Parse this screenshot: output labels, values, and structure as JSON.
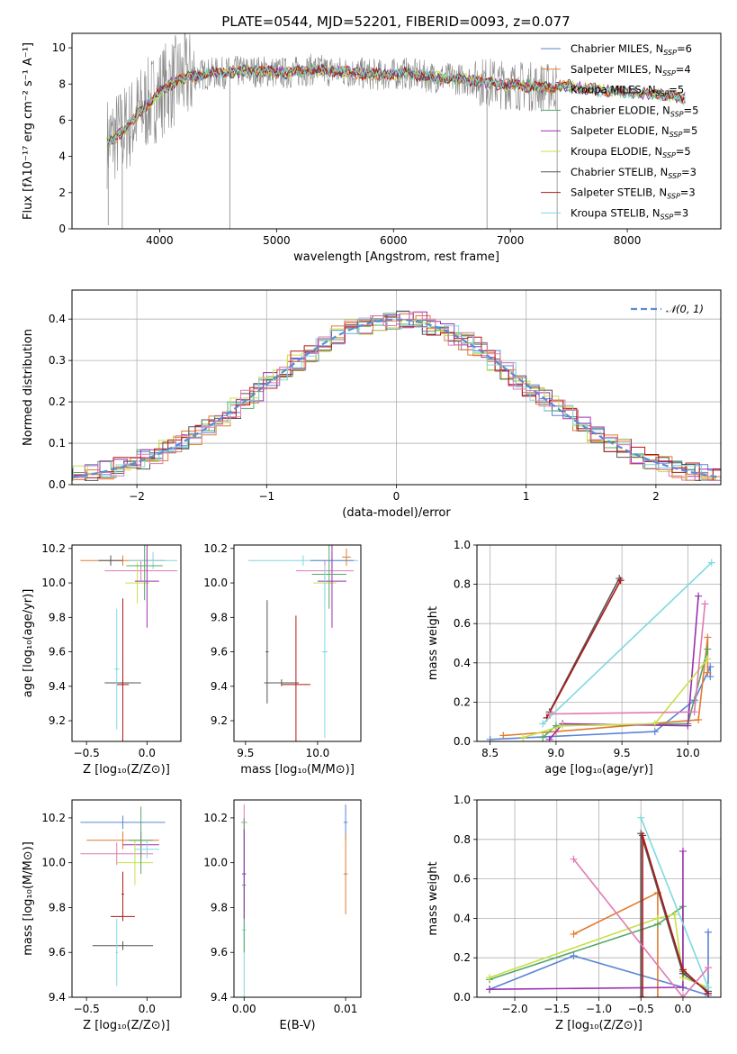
{
  "figure": {
    "title": "PLATE=0544, MJD=52201, FIBERID=0093, z=0.077"
  },
  "colors": {
    "chabrier_miles": "#5b84d6",
    "salpeter_miles": "#e07b30",
    "kroupa_miles": "#e07b30",
    "chabrier_elodie": "#55a868",
    "salpeter_elodie": "#9b30b0",
    "kroupa_elodie": "#c8e04a",
    "chabrier_stelib": "#555555",
    "salpeter_stelib": "#b01818",
    "kroupa_stelib": "#7fd8e0",
    "pink": "#e07ab4",
    "data_spectrum": "#888888",
    "normal_curve": "#5b8bd6"
  },
  "chart_data": [
    {
      "panel": "spectrum",
      "type": "line",
      "xlabel": "wavelength [Angstrom, rest frame]",
      "ylabel": "Flux [fλ10⁻¹⁷ erg cm⁻² s⁻¹ A⁻¹]",
      "xlim": [
        3250,
        8800
      ],
      "ylim": [
        0,
        10.8
      ],
      "xticks": [
        "4000",
        "5000",
        "6000",
        "7000",
        "8000"
      ],
      "yticks": [
        "0",
        "2",
        "4",
        "6",
        "8",
        "10"
      ],
      "legend_position": "right",
      "legend": [
        {
          "label": "Chabrier MILES, N",
          "sub": "SSP",
          "suffix": "=6",
          "color_key": "chabrier_miles"
        },
        {
          "label": "Salpeter MILES, N",
          "sub": "SSP",
          "suffix": "=4",
          "color_key": "salpeter_miles"
        },
        {
          "label": "Kroupa MILES, N",
          "sub": "SSP",
          "suffix": "=5",
          "color_key": "kroupa_miles"
        },
        {
          "label": "Chabrier ELODIE, N",
          "sub": "SSP",
          "suffix": "=5",
          "color_key": "chabrier_elodie"
        },
        {
          "label": "Salpeter ELODIE, N",
          "sub": "SSP",
          "suffix": "=5",
          "color_key": "salpeter_elodie"
        },
        {
          "label": "Kroupa ELODIE, N",
          "sub": "SSP",
          "suffix": "=5",
          "color_key": "kroupa_elodie"
        },
        {
          "label": "Chabrier STELIB, N",
          "sub": "SSP",
          "suffix": "=3",
          "color_key": "chabrier_stelib"
        },
        {
          "label": "Salpeter STELIB, N",
          "sub": "SSP",
          "suffix": "=3",
          "color_key": "salpeter_stelib"
        },
        {
          "label": "Kroupa STELIB, N",
          "sub": "SSP",
          "suffix": "=3",
          "color_key": "kroupa_stelib"
        }
      ],
      "model_curve": {
        "x": [
          3550,
          3650,
          3750,
          3850,
          3950,
          4050,
          4150,
          4300,
          4500,
          4700,
          4900,
          5100,
          5300,
          5500,
          5700,
          5900,
          6100,
          6300,
          6500,
          6700,
          6900,
          7100,
          7300,
          7500,
          7700,
          7900,
          8100,
          8300,
          8500
        ],
        "y": [
          4.8,
          5.2,
          5.8,
          6.6,
          7.2,
          7.8,
          8.2,
          8.5,
          8.6,
          8.7,
          8.7,
          8.6,
          8.8,
          8.7,
          8.6,
          8.5,
          8.6,
          8.4,
          8.3,
          8.2,
          8.0,
          7.9,
          7.8,
          7.9,
          7.7,
          7.6,
          7.5,
          7.4,
          7.2
        ]
      }
    },
    {
      "panel": "residuals",
      "type": "histogram",
      "xlabel": "(data-model)/error",
      "ylabel": "Normed distribution",
      "xlim": [
        -2.5,
        2.5
      ],
      "ylim": [
        0,
        0.47
      ],
      "xticks": [
        "−2",
        "−1",
        "0",
        "1",
        "2"
      ],
      "yticks": [
        "0.0",
        "0.1",
        "0.2",
        "0.3",
        "0.4"
      ],
      "legend_label": "𝒩(0, 1)",
      "legend_position": "top-right",
      "curve": "normal(0,1)"
    },
    {
      "panel": "age_vs_Z",
      "type": "scatter",
      "xlabel": "Z [log₁₀(Z/Z⊙)]",
      "ylabel": "age  [log₁₀(age/yr)]",
      "xlim": [
        -0.62,
        0.28
      ],
      "ylim": [
        9.08,
        10.22
      ],
      "xticks": [
        "−0.5",
        "0.0"
      ],
      "yticks": [
        "9.2",
        "9.4",
        "9.6",
        "9.8",
        "10.0",
        "10.2"
      ]
    },
    {
      "panel": "age_vs_mass",
      "type": "scatter",
      "xlabel": "mass [log₁₀(M/M⊙)]",
      "ylabel": "",
      "xlim": [
        9.42,
        10.3
      ],
      "ylim": [
        9.08,
        10.22
      ],
      "xticks": [
        "9.5",
        "10.0"
      ],
      "yticks": [
        "9.2",
        "9.4",
        "9.6",
        "9.8",
        "10.0",
        "10.2"
      ]
    },
    {
      "panel": "massweight_vs_age",
      "type": "line",
      "xlabel": "age  [log₁₀(age/yr)]",
      "ylabel": "mass weight",
      "xlim": [
        8.4,
        10.25
      ],
      "ylim": [
        0,
        1
      ],
      "xticks": [
        "8.5",
        "9.0",
        "9.5",
        "10.0"
      ],
      "yticks": [
        "0.0",
        "0.2",
        "0.4",
        "0.6",
        "0.8",
        "1.0"
      ],
      "series": [
        {
          "color_key": "chabrier_miles",
          "x": [
            8.5,
            9.75,
            10.05,
            10.17,
            10.17
          ],
          "y": [
            0.01,
            0.05,
            0.21,
            0.38,
            0.33
          ]
        },
        {
          "color_key": "salpeter_miles",
          "x": [
            8.6,
            9.0,
            10.08,
            10.15,
            10.15
          ],
          "y": [
            0.03,
            0.05,
            0.11,
            0.53,
            0.35
          ]
        },
        {
          "color_key": "chabrier_elodie",
          "x": [
            8.9,
            9.0,
            10.0,
            10.15
          ],
          "y": [
            0.02,
            0.08,
            0.09,
            0.47
          ]
        },
        {
          "color_key": "salpeter_elodie",
          "x": [
            8.95,
            9.05,
            10.0,
            10.08
          ],
          "y": [
            0.01,
            0.09,
            0.08,
            0.74
          ]
        },
        {
          "color_key": "kroupa_elodie",
          "x": [
            8.75,
            9.05,
            9.75,
            10.15
          ],
          "y": [
            0.02,
            0.08,
            0.09,
            0.42
          ]
        },
        {
          "color_key": "chabrier_stelib",
          "x": [
            8.95,
            9.48
          ],
          "y": [
            0.15,
            0.83
          ]
        },
        {
          "color_key": "salpeter_stelib",
          "x": [
            8.93,
            9.49
          ],
          "y": [
            0.12,
            0.82
          ]
        },
        {
          "color_key": "kroupa_stelib",
          "x": [
            8.9,
            10.18
          ],
          "y": [
            0.09,
            0.91
          ]
        },
        {
          "color_key": "pink",
          "x": [
            8.95,
            10.05,
            10.13
          ],
          "y": [
            0.14,
            0.15,
            0.7
          ]
        }
      ]
    },
    {
      "panel": "mass_vs_Z",
      "type": "scatter",
      "xlabel": "Z [log₁₀(Z/Z⊙)]",
      "ylabel": "mass [log₁₀(M/M⊙)]",
      "xlim": [
        -0.62,
        0.28
      ],
      "ylim": [
        9.4,
        10.28
      ],
      "xticks": [
        "−0.5",
        "0.0"
      ],
      "yticks": [
        "9.4",
        "9.6",
        "9.8",
        "10.0",
        "10.2"
      ]
    },
    {
      "panel": "mass_vs_EBV",
      "type": "scatter",
      "xlabel": "E(B-V)",
      "ylabel": "",
      "xlim": [
        -0.001,
        0.0115
      ],
      "ylim": [
        9.4,
        10.28
      ],
      "xticks": [
        "0.00",
        "0.01"
      ],
      "yticks": [
        "9.4",
        "9.6",
        "9.8",
        "10.0",
        "10.2"
      ]
    },
    {
      "panel": "massweight_vs_Z",
      "type": "line",
      "xlabel": "Z [log₁₀(Z/Z⊙)]",
      "ylabel": "mass weight",
      "xlim": [
        -2.45,
        0.45
      ],
      "ylim": [
        0,
        1
      ],
      "xticks": [
        "−2.0",
        "−1.5",
        "−1.0",
        "−0.5",
        "0.0"
      ],
      "yticks": [
        "0.0",
        "0.2",
        "0.4",
        "0.6",
        "0.8",
        "1.0"
      ],
      "series": [
        {
          "color_key": "chabrier_miles",
          "x": [
            -2.3,
            -1.3,
            0.0,
            0.3,
            0.3
          ],
          "y": [
            0.04,
            0.21,
            0.05,
            0.01,
            0.33
          ]
        },
        {
          "color_key": "salpeter_miles",
          "x": [
            -1.3,
            -0.3,
            -0.3,
            0.0
          ],
          "y": [
            0.32,
            0.53,
            0.0,
            0.0
          ]
        },
        {
          "color_key": "chabrier_elodie",
          "x": [
            -2.3,
            -0.3,
            0.0,
            0.0,
            0.3
          ],
          "y": [
            0.09,
            0.37,
            0.46,
            0.13,
            0.03
          ]
        },
        {
          "color_key": "salpeter_elodie",
          "x": [
            -2.3,
            0.0,
            0.0
          ],
          "y": [
            0.04,
            0.05,
            0.74
          ]
        },
        {
          "color_key": "kroupa_elodie",
          "x": [
            -2.3,
            -0.3,
            -0.1,
            0.0,
            0.3
          ],
          "y": [
            0.1,
            0.4,
            0.42,
            0.1,
            0.05
          ]
        },
        {
          "color_key": "chabrier_stelib",
          "x": [
            -0.5,
            -0.5,
            0.0,
            0.3
          ],
          "y": [
            0.0,
            0.83,
            0.12,
            0.03
          ]
        },
        {
          "color_key": "salpeter_stelib",
          "x": [
            -0.48,
            -0.48,
            0.0,
            0.3
          ],
          "y": [
            0.0,
            0.82,
            0.14,
            0.02
          ]
        },
        {
          "color_key": "kroupa_stelib",
          "x": [
            -0.5,
            0.3
          ],
          "y": [
            0.91,
            0.05
          ]
        },
        {
          "color_key": "pink",
          "x": [
            -1.3,
            0.0,
            0.3
          ],
          "y": [
            0.7,
            0.0,
            0.15
          ]
        }
      ]
    }
  ]
}
